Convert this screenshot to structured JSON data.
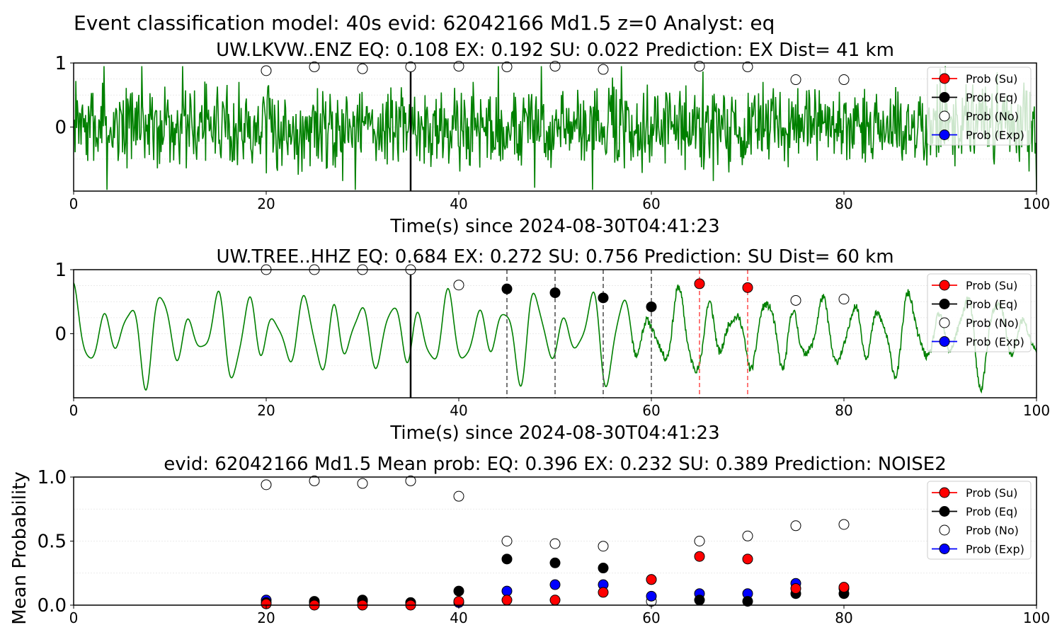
{
  "suptitle": "Event classification model: 40s evid: 62042166 Md1.5 z=0 Analyst: eq",
  "colors": {
    "waveform": "#008000",
    "su": "#ff0000",
    "eq": "#000000",
    "no": "#ffffff",
    "exp": "#0000ff",
    "eq_marker_line": "#555555",
    "su_marker_line": "#ff5555"
  },
  "chart_data": [
    {
      "type": "line",
      "title": "UW.LKVW..ENZ   EQ: 0.108  EX: 0.192  SU: 0.022   Prediction: EX    Dist= 41 km",
      "xlabel": "Time(s) since 2024-08-30T04:41:23",
      "ylabel": "",
      "xlim": [
        0,
        100
      ],
      "ylim": [
        -1,
        1
      ],
      "xticks": [
        "0",
        "20",
        "40",
        "60",
        "80",
        "100"
      ],
      "yticks": [
        "0",
        "1"
      ],
      "waveform": {
        "kind": "noise",
        "seed": 7
      },
      "vertical_lines": [
        {
          "x": 35,
          "style": "solid-black"
        }
      ],
      "series": [
        {
          "name": "Prob (Su)",
          "x": [],
          "y": []
        },
        {
          "name": "Prob (Eq)",
          "x": [],
          "y": []
        },
        {
          "name": "Prob (No)",
          "x": [
            20,
            25,
            30,
            35,
            40,
            45,
            50,
            55,
            65,
            70,
            75,
            80
          ],
          "y": [
            0.88,
            0.94,
            0.91,
            0.94,
            0.95,
            0.94,
            0.95,
            0.9,
            0.95,
            0.94,
            0.74,
            0.74
          ]
        },
        {
          "name": "Prob (Exp)",
          "x": [],
          "y": []
        }
      ],
      "legend": {
        "position": "upper-right",
        "entries": [
          "Prob (Su)",
          "Prob (Eq)",
          "Prob (No)",
          "Prob (Exp)"
        ]
      }
    },
    {
      "type": "line",
      "title": "UW.TREE..HHZ   EQ: 0.684  EX: 0.272  SU: 0.756   Prediction: SU    Dist= 60 km",
      "xlabel": "Time(s) since 2024-08-30T04:41:23",
      "ylabel": "",
      "xlim": [
        0,
        100
      ],
      "ylim": [
        -1,
        1
      ],
      "xticks": [
        "0",
        "20",
        "40",
        "60",
        "80",
        "100"
      ],
      "yticks": [
        "0",
        "1"
      ],
      "waveform": {
        "kind": "oscillation",
        "seed": 11
      },
      "vertical_lines": [
        {
          "x": 35,
          "style": "solid-black"
        },
        {
          "x": 45,
          "style": "dashed-gray"
        },
        {
          "x": 50,
          "style": "dashed-gray"
        },
        {
          "x": 55,
          "style": "dashed-gray"
        },
        {
          "x": 60,
          "style": "dashed-gray"
        },
        {
          "x": 65,
          "style": "dashed-red"
        },
        {
          "x": 70,
          "style": "dashed-red"
        }
      ],
      "series": [
        {
          "name": "Prob (Su)",
          "x": [
            65,
            70
          ],
          "y": [
            0.78,
            0.72
          ]
        },
        {
          "name": "Prob (Eq)",
          "x": [
            45,
            50,
            55,
            60
          ],
          "y": [
            0.7,
            0.64,
            0.56,
            0.42
          ]
        },
        {
          "name": "Prob (No)",
          "x": [
            20,
            25,
            30,
            35,
            40,
            75,
            80
          ],
          "y": [
            1.0,
            1.0,
            1.0,
            1.0,
            0.76,
            0.52,
            0.54
          ]
        },
        {
          "name": "Prob (Exp)",
          "x": [],
          "y": []
        }
      ],
      "legend": {
        "position": "upper-right",
        "entries": [
          "Prob (Su)",
          "Prob (Eq)",
          "Prob (No)",
          "Prob (Exp)"
        ]
      }
    },
    {
      "type": "scatter",
      "title": "evid: 62042166  Md1.5   Mean prob:   EQ: 0.396  EX: 0.232  SU: 0.389   Prediction: NOISE2",
      "xlabel": "",
      "ylabel": "Mean Probability",
      "xlim": [
        0,
        100
      ],
      "ylim": [
        0,
        1
      ],
      "xticks": [
        "0",
        "20",
        "40",
        "60",
        "80",
        "100"
      ],
      "yticks": [
        "0.0",
        "0.5",
        "1.0"
      ],
      "series": [
        {
          "name": "Prob (No)",
          "x": [
            20,
            25,
            30,
            35,
            40,
            45,
            50,
            55,
            60,
            65,
            70,
            75,
            80
          ],
          "y": [
            0.94,
            0.97,
            0.95,
            0.97,
            0.85,
            0.5,
            0.48,
            0.46,
            0.03,
            0.5,
            0.54,
            0.62,
            0.63
          ]
        },
        {
          "name": "Prob (Exp)",
          "x": [
            20,
            25,
            30,
            35,
            40,
            45,
            50,
            55,
            60,
            65,
            70,
            75,
            80
          ],
          "y": [
            0.04,
            0.02,
            0.03,
            0.02,
            0.02,
            0.11,
            0.16,
            0.16,
            0.07,
            0.09,
            0.09,
            0.17,
            0.13
          ]
        },
        {
          "name": "Prob (Eq)",
          "x": [
            20,
            25,
            30,
            35,
            40,
            45,
            50,
            55,
            60,
            65,
            70,
            75,
            80
          ],
          "y": [
            0.02,
            0.03,
            0.04,
            0.02,
            0.11,
            0.36,
            0.33,
            0.29,
            0.2,
            0.04,
            0.03,
            0.09,
            0.09
          ]
        },
        {
          "name": "Prob (Su)",
          "x": [
            20,
            25,
            30,
            35,
            40,
            45,
            50,
            55,
            60,
            65,
            70,
            75,
            80
          ],
          "y": [
            0.01,
            0.0,
            0.0,
            0.0,
            0.03,
            0.04,
            0.04,
            0.1,
            0.2,
            0.38,
            0.36,
            0.13,
            0.14
          ]
        }
      ],
      "legend": {
        "position": "upper-right",
        "entries": [
          "Prob (Su)",
          "Prob (Eq)",
          "Prob (No)",
          "Prob (Exp)"
        ]
      }
    }
  ]
}
